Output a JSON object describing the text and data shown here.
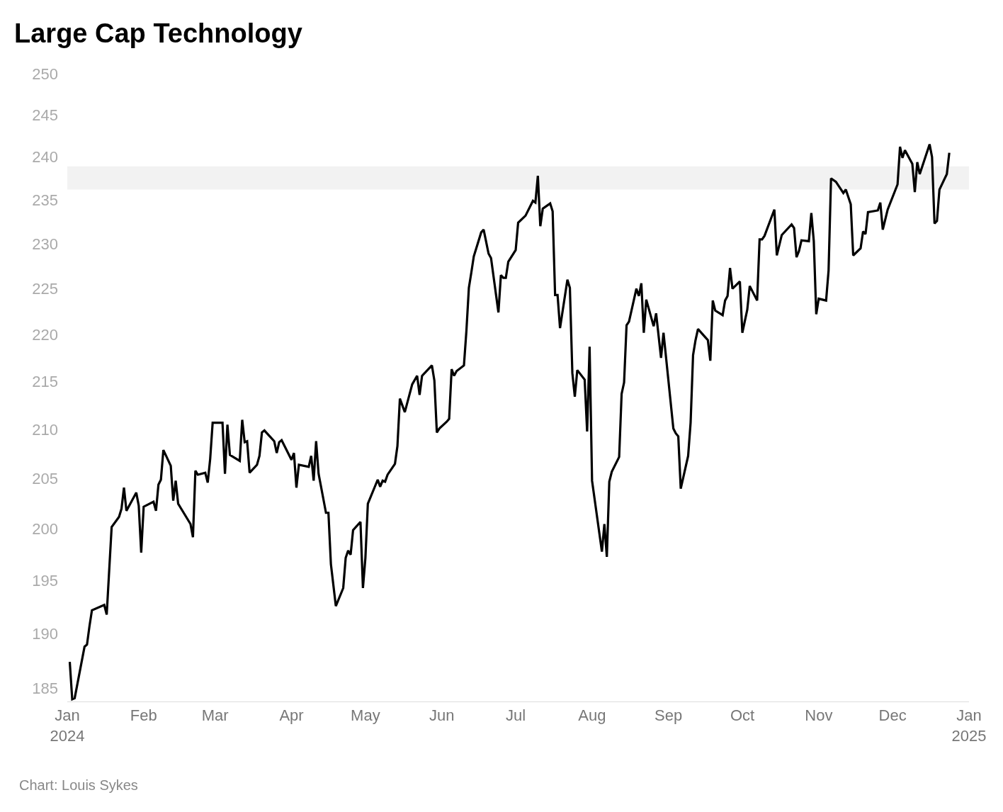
{
  "chart_data": {
    "type": "line",
    "title": "Large Cap Technology",
    "annotations": [
      "Chart: Louis Sykes"
    ],
    "x": [
      "2024-01-02",
      "2024-01-03",
      "2024-01-04",
      "2024-01-08",
      "2024-01-09",
      "2024-01-10",
      "2024-01-11",
      "2024-01-16",
      "2024-01-17",
      "2024-01-19",
      "2024-01-22",
      "2024-01-23",
      "2024-01-24",
      "2024-01-25",
      "2024-01-29",
      "2024-01-30",
      "2024-01-31",
      "2024-02-01",
      "2024-02-05",
      "2024-02-06",
      "2024-02-07",
      "2024-02-08",
      "2024-02-09",
      "2024-02-12",
      "2024-02-13",
      "2024-02-14",
      "2024-02-15",
      "2024-02-20",
      "2024-02-21",
      "2024-02-22",
      "2024-02-23",
      "2024-02-26",
      "2024-02-27",
      "2024-02-28",
      "2024-02-29",
      "2024-03-04",
      "2024-03-05",
      "2024-03-06",
      "2024-03-07",
      "2024-03-11",
      "2024-03-12",
      "2024-03-13",
      "2024-03-14",
      "2024-03-15",
      "2024-03-18",
      "2024-03-19",
      "2024-03-20",
      "2024-03-21",
      "2024-03-25",
      "2024-03-26",
      "2024-03-27",
      "2024-03-28",
      "2024-04-01",
      "2024-04-02",
      "2024-04-03",
      "2024-04-04",
      "2024-04-08",
      "2024-04-09",
      "2024-04-10",
      "2024-04-11",
      "2024-04-12",
      "2024-04-15",
      "2024-04-16",
      "2024-04-17",
      "2024-04-19",
      "2024-04-22",
      "2024-04-23",
      "2024-04-24",
      "2024-04-25",
      "2024-04-26",
      "2024-04-29",
      "2024-04-30",
      "2024-05-01",
      "2024-05-02",
      "2024-05-06",
      "2024-05-07",
      "2024-05-08",
      "2024-05-09",
      "2024-05-10",
      "2024-05-13",
      "2024-05-14",
      "2024-05-15",
      "2024-05-17",
      "2024-05-20",
      "2024-05-22",
      "2024-05-23",
      "2024-05-24",
      "2024-05-28",
      "2024-05-29",
      "2024-05-30",
      "2024-05-31",
      "2024-06-03",
      "2024-06-04",
      "2024-06-05",
      "2024-06-06",
      "2024-06-07",
      "2024-06-10",
      "2024-06-11",
      "2024-06-12",
      "2024-06-13",
      "2024-06-14",
      "2024-06-17",
      "2024-06-18",
      "2024-06-20",
      "2024-06-21",
      "2024-06-24",
      "2024-06-25",
      "2024-06-26",
      "2024-06-27",
      "2024-06-28",
      "2024-07-01",
      "2024-07-02",
      "2024-07-05",
      "2024-07-08",
      "2024-07-09",
      "2024-07-10",
      "2024-07-11",
      "2024-07-12",
      "2024-07-15",
      "2024-07-16",
      "2024-07-17",
      "2024-07-18",
      "2024-07-19",
      "2024-07-22",
      "2024-07-23",
      "2024-07-24",
      "2024-07-25",
      "2024-07-26",
      "2024-07-29",
      "2024-07-30",
      "2024-07-31",
      "2024-08-01",
      "2024-08-05",
      "2024-08-06",
      "2024-08-07",
      "2024-08-08",
      "2024-08-09",
      "2024-08-12",
      "2024-08-13",
      "2024-08-14",
      "2024-08-15",
      "2024-08-16",
      "2024-08-19",
      "2024-08-20",
      "2024-08-21",
      "2024-08-22",
      "2024-08-23",
      "2024-08-26",
      "2024-08-27",
      "2024-08-29",
      "2024-08-30",
      "2024-09-03",
      "2024-09-04",
      "2024-09-05",
      "2024-09-06",
      "2024-09-09",
      "2024-09-10",
      "2024-09-11",
      "2024-09-12",
      "2024-09-13",
      "2024-09-16",
      "2024-09-17",
      "2024-09-18",
      "2024-09-19",
      "2024-09-20",
      "2024-09-23",
      "2024-09-24",
      "2024-09-25",
      "2024-09-26",
      "2024-09-27",
      "2024-09-30",
      "2024-10-01",
      "2024-10-03",
      "2024-10-04",
      "2024-10-07",
      "2024-10-08",
      "2024-10-09",
      "2024-10-10",
      "2024-10-14",
      "2024-10-15",
      "2024-10-17",
      "2024-10-21",
      "2024-10-22",
      "2024-10-23",
      "2024-10-24",
      "2024-10-25",
      "2024-10-28",
      "2024-10-29",
      "2024-10-30",
      "2024-10-31",
      "2024-11-01",
      "2024-11-04",
      "2024-11-05",
      "2024-11-06",
      "2024-11-08",
      "2024-11-11",
      "2024-11-12",
      "2024-11-14",
      "2024-11-15",
      "2024-11-18",
      "2024-11-19",
      "2024-11-20",
      "2024-11-21",
      "2024-11-25",
      "2024-11-26",
      "2024-11-27",
      "2024-11-29",
      "2024-12-03",
      "2024-12-04",
      "2024-12-05",
      "2024-12-06",
      "2024-12-09",
      "2024-12-10",
      "2024-12-11",
      "2024-12-12",
      "2024-12-16",
      "2024-12-17",
      "2024-12-18",
      "2024-12-19",
      "2024-12-20",
      "2024-12-23",
      "2024-12-24"
    ],
    "series": [
      {
        "color": "#000000",
        "values": [
          187.4,
          184.0,
          184.1,
          188.8,
          189.0,
          190.7,
          192.2,
          192.7,
          191.8,
          200.2,
          201.2,
          202.0,
          204.1,
          201.8,
          203.6,
          202.3,
          197.7,
          202.2,
          202.7,
          201.8,
          204.4,
          204.9,
          207.9,
          206.3,
          202.8,
          204.8,
          202.5,
          200.5,
          199.2,
          205.8,
          205.4,
          205.6,
          204.6,
          207.0,
          210.7,
          210.7,
          205.5,
          210.5,
          207.4,
          206.8,
          211.0,
          208.7,
          208.8,
          205.6,
          206.4,
          207.3,
          209.7,
          209.9,
          208.8,
          207.6,
          208.7,
          208.9,
          206.9,
          207.6,
          204.1,
          206.4,
          206.2,
          207.3,
          204.8,
          208.8,
          205.5,
          201.6,
          201.6,
          196.6,
          192.6,
          194.3,
          197.2,
          197.9,
          197.5,
          199.9,
          200.7,
          194.3,
          197.2,
          202.5,
          204.9,
          204.2,
          204.8,
          204.7,
          205.4,
          206.5,
          208.3,
          213.2,
          211.8,
          214.7,
          215.6,
          213.6,
          215.6,
          216.7,
          215.1,
          209.7,
          210.1,
          210.8,
          211.1,
          216.3,
          215.6,
          216.1,
          216.7,
          220.4,
          225.1,
          226.8,
          228.6,
          231.3,
          231.6,
          228.9,
          228.4,
          222.4,
          226.5,
          226.2,
          226.2,
          228.0,
          229.3,
          232.4,
          233.2,
          234.9,
          234.7,
          237.8,
          232.0,
          234.0,
          234.6,
          233.7,
          224.3,
          224.3,
          220.7,
          226.0,
          225.1,
          215.9,
          213.4,
          216.2,
          215.2,
          209.8,
          218.7,
          204.8,
          197.8,
          200.5,
          197.3,
          204.7,
          205.7,
          207.2,
          213.7,
          214.9,
          221.0,
          221.4,
          225.0,
          224.2,
          225.6,
          220.2,
          223.8,
          220.9,
          222.3,
          217.5,
          220.2,
          210.1,
          209.6,
          209.3,
          204.0,
          207.3,
          210.7,
          217.8,
          219.4,
          220.6,
          219.7,
          219.4,
          217.2,
          223.7,
          222.6,
          222.1,
          223.7,
          224.2,
          227.3,
          225.0,
          225.8,
          220.2,
          222.7,
          225.3,
          223.7,
          230.5,
          230.5,
          230.9,
          233.9,
          228.7,
          231.0,
          232.2,
          231.8,
          228.5,
          229.2,
          230.4,
          230.3,
          233.5,
          230.3,
          222.2,
          223.9,
          223.7,
          227.0,
          237.5,
          237.1,
          235.8,
          236.2,
          234.5,
          228.7,
          229.5,
          231.4,
          231.1,
          233.6,
          233.8,
          234.7,
          231.6,
          233.9,
          236.8,
          241.2,
          239.9,
          240.8,
          239.2,
          235.9,
          239.4,
          238.0,
          241.5,
          240.0,
          232.3,
          232.6,
          236.2,
          238.0,
          240.5
        ]
      }
    ],
    "xlim": [
      "2024-01-01",
      "2025-01-01"
    ],
    "xticks": [
      {
        "value": "2024-01-01",
        "label": "Jan\n2024"
      },
      {
        "value": "2024-02-01",
        "label": "Feb"
      },
      {
        "value": "2024-03-01",
        "label": "Mar"
      },
      {
        "value": "2024-04-01",
        "label": "Apr"
      },
      {
        "value": "2024-05-01",
        "label": "May"
      },
      {
        "value": "2024-06-01",
        "label": "Jun"
      },
      {
        "value": "2024-07-01",
        "label": "Jul"
      },
      {
        "value": "2024-08-01",
        "label": "Aug"
      },
      {
        "value": "2024-09-01",
        "label": "Sep"
      },
      {
        "value": "2024-10-01",
        "label": "Oct"
      },
      {
        "value": "2024-11-01",
        "label": "Nov"
      },
      {
        "value": "2024-12-01",
        "label": "Dec"
      },
      {
        "value": "2025-01-01",
        "label": "Jan\n2025"
      }
    ],
    "yticks": [
      185,
      190,
      195,
      200,
      205,
      210,
      215,
      220,
      225,
      230,
      235,
      240,
      245,
      250
    ],
    "ylim": [
      183.8,
      250
    ],
    "log": "y",
    "bands": [
      {
        "axis": "y",
        "from": 236.2,
        "to": 238.9,
        "color": "#f2f2f2"
      }
    ],
    "line_style": "solid"
  }
}
